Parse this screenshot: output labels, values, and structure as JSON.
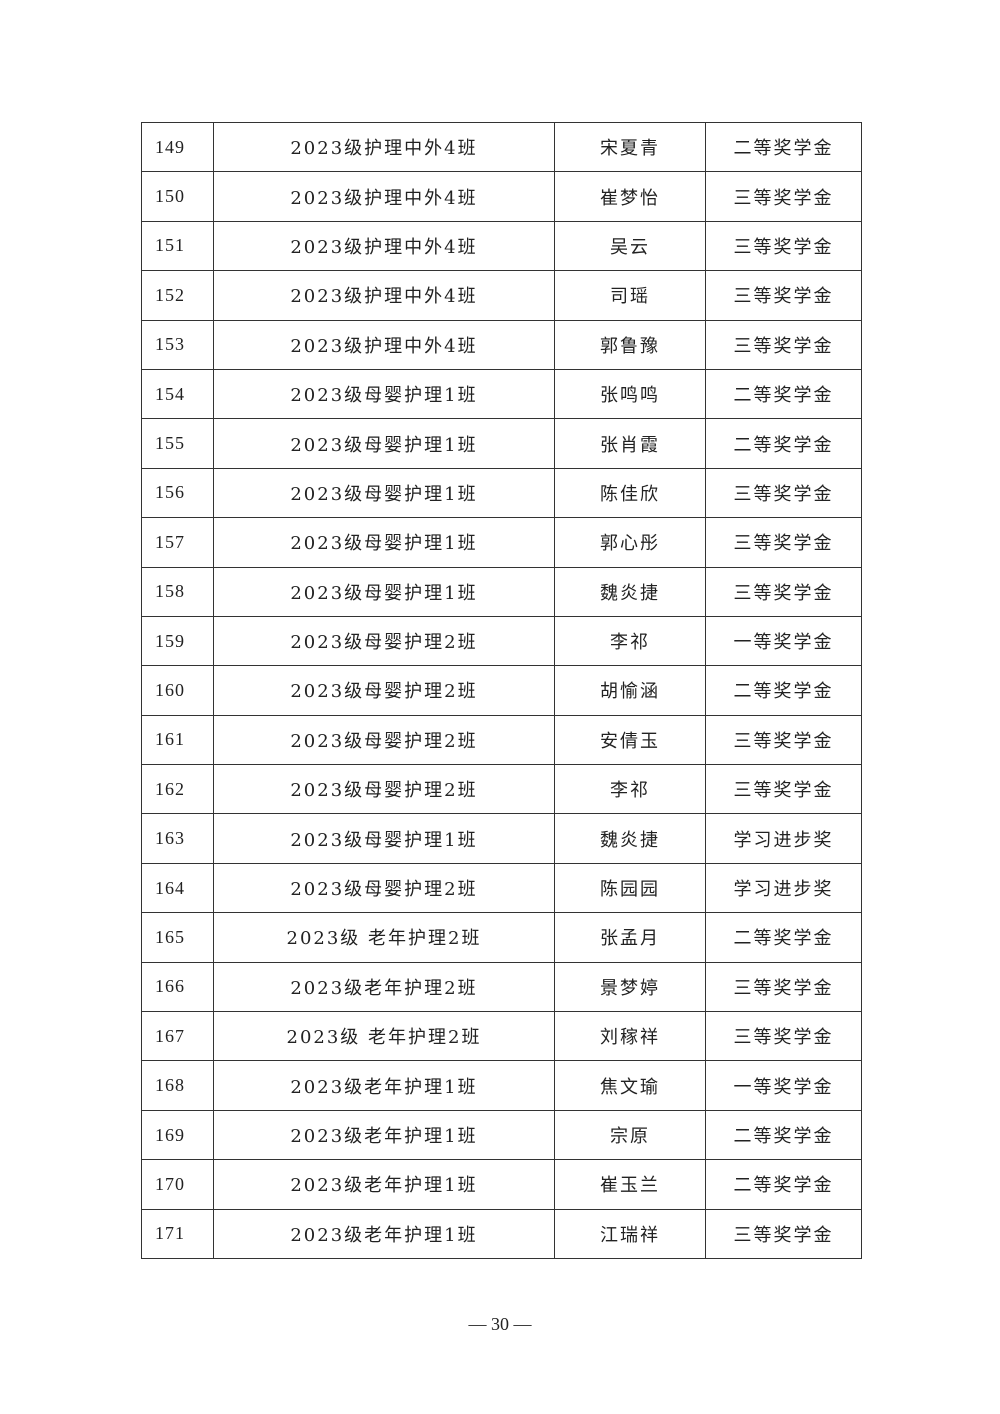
{
  "table": {
    "rows": [
      [
        "149",
        "2023级护理中外4班",
        "宋夏青",
        "二等奖学金"
      ],
      [
        "150",
        "2023级护理中外4班",
        "崔梦怡",
        "三等奖学金"
      ],
      [
        "151",
        "2023级护理中外4班",
        "吴云",
        "三等奖学金"
      ],
      [
        "152",
        "2023级护理中外4班",
        "司瑶",
        "三等奖学金"
      ],
      [
        "153",
        "2023级护理中外4班",
        "郭鲁豫",
        "三等奖学金"
      ],
      [
        "154",
        "2023级母婴护理1班",
        "张鸣鸣",
        "二等奖学金"
      ],
      [
        "155",
        "2023级母婴护理1班",
        "张肖霞",
        "二等奖学金"
      ],
      [
        "156",
        "2023级母婴护理1班",
        "陈佳欣",
        "三等奖学金"
      ],
      [
        "157",
        "2023级母婴护理1班",
        "郭心彤",
        "三等奖学金"
      ],
      [
        "158",
        "2023级母婴护理1班",
        "魏炎捷",
        "三等奖学金"
      ],
      [
        "159",
        "2023级母婴护理2班",
        "李祁",
        "一等奖学金"
      ],
      [
        "160",
        "2023级母婴护理2班",
        "胡愉涵",
        "二等奖学金"
      ],
      [
        "161",
        "2023级母婴护理2班",
        "安倩玉",
        "三等奖学金"
      ],
      [
        "162",
        "2023级母婴护理2班",
        "李祁",
        "三等奖学金"
      ],
      [
        "163",
        "2023级母婴护理1班",
        "魏炎捷",
        "学习进步奖"
      ],
      [
        "164",
        "2023级母婴护理2班",
        "陈园园",
        "学习进步奖"
      ],
      [
        "165",
        "2023级 老年护理2班",
        "张孟月",
        "二等奖学金"
      ],
      [
        "166",
        "2023级老年护理2班",
        "景梦婷",
        "三等奖学金"
      ],
      [
        "167",
        "2023级 老年护理2班",
        "刘稼祥",
        "三等奖学金"
      ],
      [
        "168",
        "2023级老年护理1班",
        "焦文瑜",
        "一等奖学金"
      ],
      [
        "169",
        "2023级老年护理1班",
        "宗原",
        "二等奖学金"
      ],
      [
        "170",
        "2023级老年护理1班",
        "崔玉兰",
        "二等奖学金"
      ],
      [
        "171",
        "2023级老年护理1班",
        "江瑞祥",
        "三等奖学金"
      ]
    ]
  },
  "footer": {
    "page_number": "— 30 —"
  }
}
